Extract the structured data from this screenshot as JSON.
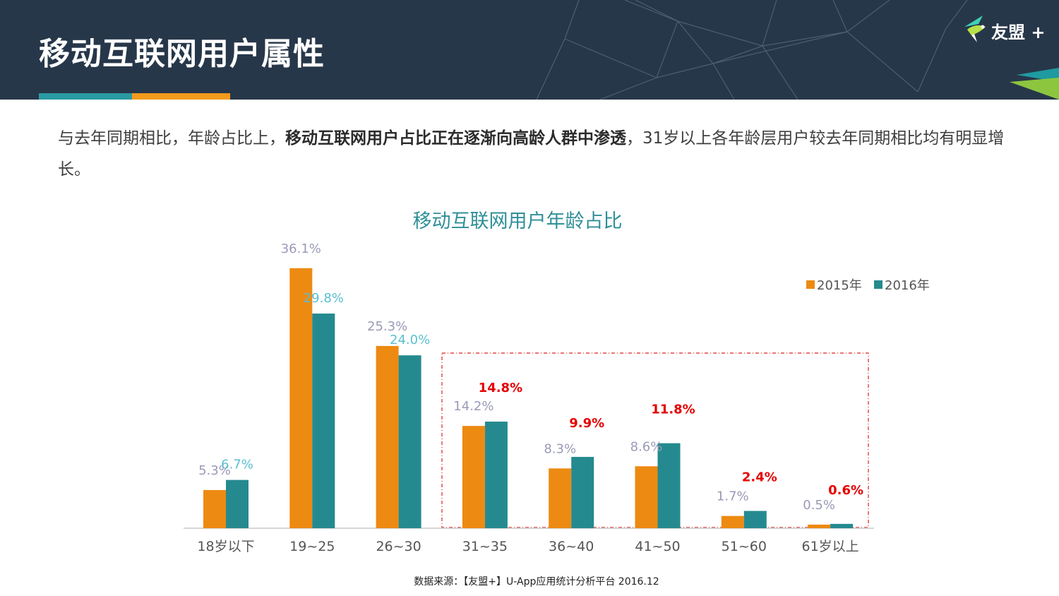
{
  "header": {
    "title": "移动互联网用户属性",
    "logo_text": "友盟 +",
    "logo_icon": "hummingbird-icon"
  },
  "summary": {
    "part1": "与去年同期相比，年龄占比上，",
    "bold": "移动互联网用户占比正在逐渐向高龄人群中渗透",
    "part2": "，31岁以上各年龄层用户较去年同期相比均有明显增长。"
  },
  "chart_data": {
    "type": "bar",
    "title": "移动互联网用户年龄占比",
    "categories": [
      "18岁以下",
      "19~25",
      "26~30",
      "31~35",
      "36~40",
      "41~50",
      "51~60",
      "61岁以上"
    ],
    "series": [
      {
        "name": "2015年",
        "color": "#ed8a12",
        "values": [
          5.3,
          36.1,
          25.3,
          14.2,
          8.3,
          8.6,
          1.7,
          0.5
        ],
        "labels": [
          "5.3%",
          "36.1%",
          "25.3%",
          "14.2%",
          "8.3%",
          "8.6%",
          "1.7%",
          "0.5%"
        ]
      },
      {
        "name": "2016年",
        "color": "#258a8f",
        "values": [
          6.7,
          29.8,
          24.0,
          14.8,
          9.9,
          11.8,
          2.4,
          0.6
        ],
        "labels": [
          "6.7%",
          "29.8%",
          "24.0%",
          "14.8%",
          "9.9%",
          "11.8%",
          "2.4%",
          "0.6%"
        ]
      }
    ],
    "label_colors": {
      "2015": "#9a9ab8",
      "2016": "#5bbfd0",
      "highlight": "#e60000"
    },
    "highlight_from_index": 3,
    "ylim": [
      0,
      40
    ],
    "legend": "top-right",
    "grid": false,
    "xlabel": "",
    "ylabel": ""
  },
  "source": "数据来源：【友盟+】U-App应用统计分析平台 2016.12"
}
